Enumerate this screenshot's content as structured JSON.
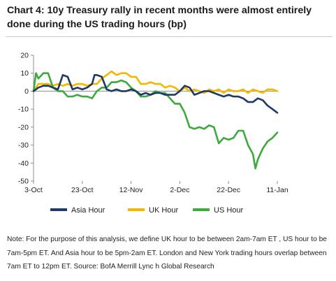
{
  "title": "Chart 4: 10y Treasury rally in recent months were almost entirely done during the US trading hours (bp)",
  "note": "Note: For the purpose of this analysis, we define UK hour to be between 2am-7am ET , US hour to be 7am-5pm ET. And Asia hour to be 5pm-2am ET. London and New York trading hours overlap between 7am ET to 12pm ET. Source: BofA Merrill Lync h Global Research",
  "chart_data": {
    "type": "line",
    "ylim": [
      -50,
      20
    ],
    "yticks": [
      20,
      10,
      0,
      -10,
      -20,
      -30,
      -40,
      -50
    ],
    "xlim": [
      0,
      100
    ],
    "xticks": [
      {
        "label": "3-Oct",
        "pos": 0
      },
      {
        "label": "23-Oct",
        "pos": 20
      },
      {
        "label": "12-Nov",
        "pos": 40
      },
      {
        "label": "2-Dec",
        "pos": 60
      },
      {
        "label": "22-Dec",
        "pos": 80
      },
      {
        "label": "11-Jan",
        "pos": 100
      }
    ],
    "grid": false,
    "legend": "bottom",
    "series": [
      {
        "name": "Asia Hour",
        "color": "#1f3864",
        "x": [
          0,
          2,
          4,
          6,
          8,
          10,
          12,
          14,
          16,
          18,
          20,
          22,
          24,
          25,
          26,
          28,
          30,
          32,
          34,
          36,
          38,
          40,
          42,
          44,
          46,
          48,
          50,
          52,
          54,
          56,
          58,
          60,
          62,
          64,
          66,
          68,
          70,
          72,
          74,
          76,
          78,
          80,
          82,
          84,
          86,
          88,
          90,
          92,
          94,
          96,
          98,
          100
        ],
        "y": [
          0,
          2,
          3,
          3,
          2,
          1,
          9,
          8,
          1,
          2,
          1,
          2,
          4,
          9,
          9,
          8,
          1,
          0,
          1,
          0,
          0,
          1,
          0,
          -2,
          -1,
          -2,
          -1,
          -1,
          -2,
          -2,
          -2,
          0,
          3,
          2,
          -2,
          -1,
          0,
          0,
          -1,
          -2,
          -3,
          -2,
          -3,
          -3,
          -4,
          -6,
          -6,
          -4,
          -5,
          -8,
          -10,
          -12
        ]
      },
      {
        "name": "UK Hour",
        "color": "#f2b800",
        "x": [
          0,
          2,
          4,
          6,
          8,
          10,
          12,
          14,
          16,
          18,
          20,
          22,
          24,
          26,
          28,
          30,
          32,
          34,
          36,
          38,
          40,
          42,
          44,
          46,
          48,
          50,
          52,
          54,
          56,
          58,
          60,
          62,
          64,
          66,
          68,
          70,
          72,
          74,
          76,
          78,
          80,
          82,
          84,
          86,
          88,
          90,
          92,
          94,
          96,
          98,
          100
        ],
        "y": [
          0,
          4,
          4,
          4,
          3,
          4,
          3,
          4,
          3,
          4,
          4,
          3,
          4,
          4,
          7,
          9,
          11,
          9,
          10,
          10,
          8,
          8,
          4,
          4,
          5,
          4,
          4,
          2,
          3,
          2,
          0,
          2,
          0,
          1,
          0,
          -1,
          1,
          0,
          1,
          -1,
          1,
          0,
          0,
          1,
          -1,
          1,
          0,
          -1,
          1,
          1,
          0
        ]
      },
      {
        "name": "US Hour",
        "color": "#3daa3d",
        "x": [
          0,
          1,
          2,
          4,
          6,
          8,
          10,
          12,
          14,
          16,
          18,
          20,
          22,
          24,
          26,
          28,
          30,
          32,
          34,
          36,
          38,
          40,
          42,
          44,
          46,
          48,
          50,
          52,
          54,
          56,
          58,
          60,
          62,
          64,
          66,
          68,
          70,
          72,
          74,
          76,
          78,
          80,
          82,
          84,
          86,
          88,
          90,
          91,
          92,
          94,
          96,
          98,
          100
        ],
        "y": [
          0,
          10,
          7,
          10,
          10,
          2,
          0,
          0,
          -3,
          -3,
          -2,
          -3,
          -3,
          -4,
          0,
          2,
          2,
          5,
          5,
          6,
          5,
          2,
          0,
          -3,
          -3,
          -2,
          0,
          -1,
          -1,
          -4,
          -7,
          -7,
          -12,
          -20,
          -21,
          -20,
          -21,
          -19,
          -20,
          -29,
          -26,
          -27,
          -26,
          -22,
          -22,
          -30,
          -35,
          -43,
          -38,
          -32,
          -28,
          -26,
          -23
        ]
      }
    ]
  }
}
